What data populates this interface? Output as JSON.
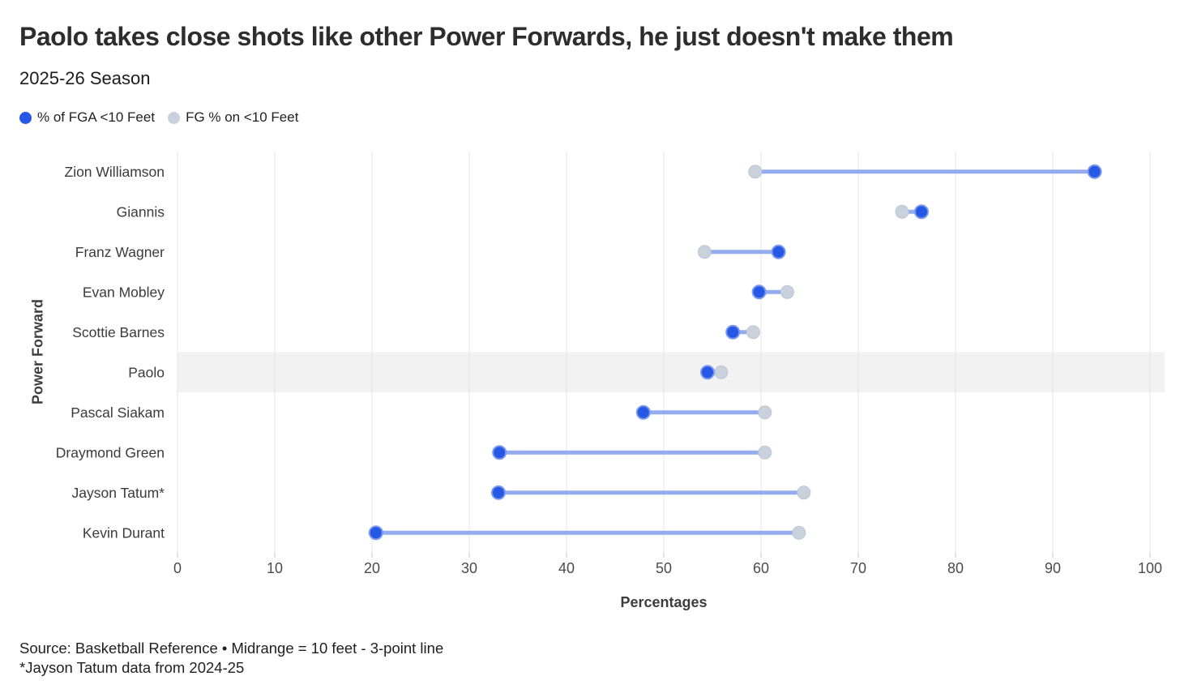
{
  "header": {
    "title": "Paolo takes close shots like other Power Forwards, he just doesn't make them",
    "subtitle": "2025-26 Season"
  },
  "legend": [
    {
      "label": "% of FGA <10 Feet",
      "color": "#2458e5"
    },
    {
      "label": "FG % on <10 Feet",
      "color": "#c8d1dc"
    }
  ],
  "chart_data": {
    "type": "dumbbell",
    "title": "Paolo takes close shots like other Power Forwards, he just doesn't make them",
    "subtitle": "2025-26 Season",
    "xlabel": "Percentages",
    "ylabel": "Power Forward",
    "xlim": [
      0,
      100
    ],
    "xticks": [
      0,
      10,
      20,
      30,
      40,
      50,
      60,
      70,
      80,
      90,
      100
    ],
    "grid": true,
    "legend_position": "top-left",
    "categories": [
      "Zion Williamson",
      "Giannis",
      "Franz Wagner",
      "Evan Mobley",
      "Scottie Barnes",
      "Paolo",
      "Pascal Siakam",
      "Draymond Green",
      "Jayson Tatum*",
      "Kevin Durant"
    ],
    "series": [
      {
        "name": "% of FGA <10 Feet",
        "color": "#2458e5",
        "values": [
          94.3,
          76.5,
          61.8,
          59.8,
          57.1,
          54.5,
          47.9,
          33.1,
          33.0,
          20.4
        ]
      },
      {
        "name": "FG % on <10 Feet",
        "color": "#c8d1dc",
        "values": [
          59.4,
          74.5,
          54.2,
          62.7,
          59.2,
          55.9,
          60.4,
          60.4,
          64.4,
          63.9
        ]
      }
    ],
    "highlighted_category": "Paolo",
    "highlight_color": "#f2f2f3",
    "connector_color": "#93acef",
    "gridline_color": "#e4e4e4"
  },
  "footer": {
    "source": "Source: Basketball Reference • Midrange = 10 feet - 3-point line",
    "note": "*Jayson Tatum data from 2024-25"
  }
}
